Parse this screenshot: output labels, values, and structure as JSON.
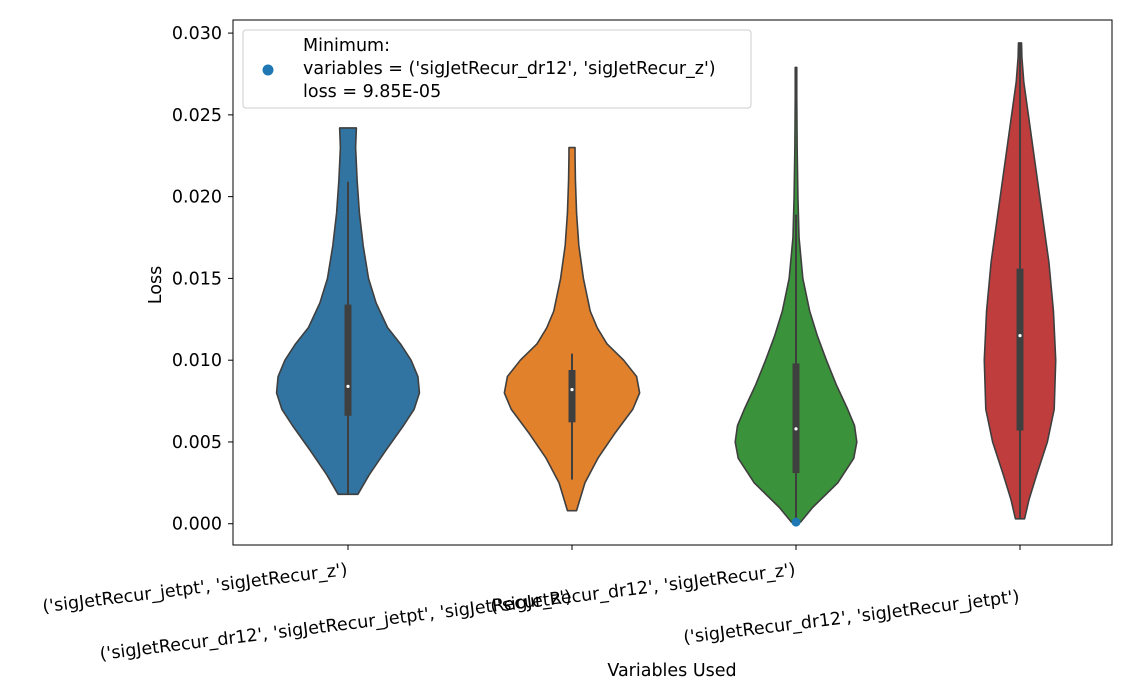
{
  "chart_data": {
    "type": "violin",
    "xlabel": "Variables Used",
    "ylabel": "Loss",
    "ylim": [
      -0.0013,
      0.0308
    ],
    "yticks": [
      0.0,
      0.005,
      0.01,
      0.015,
      0.02,
      0.025,
      0.03
    ],
    "ytick_labels": [
      "0.000",
      "0.005",
      "0.010",
      "0.015",
      "0.020",
      "0.025",
      "0.030"
    ],
    "grid": false,
    "legend_position": "top-left",
    "legend": {
      "title": "Minimum:",
      "line1": "variables = ('sigJetRecur_dr12', 'sigJetRecur_z')",
      "line2": "loss = 9.85E-05",
      "marker_color": "#1f77b4"
    },
    "minimum_point": {
      "category_index": 2,
      "value": 9.85e-05
    },
    "categories": [
      "('sigJetRecur_jetpt', 'sigJetRecur_z')",
      "('sigJetRecur_dr12', 'sigJetRecur_jetpt', 'sigJetRecur_z')",
      "('sigJetRecur_dr12', 'sigJetRecur_z')",
      "('sigJetRecur_dr12', 'sigJetRecur_jetpt')"
    ],
    "violins": [
      {
        "color": "#3274a1",
        "min": 0.0018,
        "max": 0.0242,
        "q1": 0.0066,
        "median": 0.0084,
        "q3": 0.0134,
        "whisker_low": 0.0018,
        "whisker_high": 0.0209,
        "profile": [
          [
            0.0018,
            0.13
          ],
          [
            0.003,
            0.28
          ],
          [
            0.0045,
            0.5
          ],
          [
            0.006,
            0.73
          ],
          [
            0.007,
            0.87
          ],
          [
            0.008,
            0.94
          ],
          [
            0.009,
            0.92
          ],
          [
            0.01,
            0.83
          ],
          [
            0.011,
            0.69
          ],
          [
            0.012,
            0.52
          ],
          [
            0.0135,
            0.37
          ],
          [
            0.015,
            0.27
          ],
          [
            0.017,
            0.2
          ],
          [
            0.019,
            0.15
          ],
          [
            0.021,
            0.12
          ],
          [
            0.023,
            0.1
          ],
          [
            0.0242,
            0.11
          ]
        ]
      },
      {
        "color": "#e1812c",
        "min": 0.0008,
        "max": 0.023,
        "q1": 0.0062,
        "median": 0.0082,
        "q3": 0.0094,
        "whisker_low": 0.0027,
        "whisker_high": 0.0104,
        "profile": [
          [
            0.0008,
            0.06
          ],
          [
            0.0025,
            0.17
          ],
          [
            0.004,
            0.34
          ],
          [
            0.0055,
            0.56
          ],
          [
            0.007,
            0.8
          ],
          [
            0.008,
            0.89
          ],
          [
            0.009,
            0.85
          ],
          [
            0.01,
            0.68
          ],
          [
            0.011,
            0.46
          ],
          [
            0.012,
            0.33
          ],
          [
            0.013,
            0.24
          ],
          [
            0.015,
            0.15
          ],
          [
            0.017,
            0.09
          ],
          [
            0.019,
            0.06
          ],
          [
            0.021,
            0.045
          ],
          [
            0.0225,
            0.04
          ],
          [
            0.023,
            0.04
          ]
        ]
      },
      {
        "color": "#3a923a",
        "min": 0.0001,
        "max": 0.0279,
        "q1": 0.0031,
        "median": 0.0058,
        "q3": 0.0098,
        "whisker_low": 0.0001,
        "whisker_high": 0.0189,
        "profile": [
          [
            0.0001,
            0.06
          ],
          [
            0.001,
            0.22
          ],
          [
            0.0025,
            0.55
          ],
          [
            0.004,
            0.76
          ],
          [
            0.005,
            0.8
          ],
          [
            0.006,
            0.77
          ],
          [
            0.007,
            0.68
          ],
          [
            0.0085,
            0.53
          ],
          [
            0.01,
            0.4
          ],
          [
            0.0115,
            0.28
          ],
          [
            0.013,
            0.18
          ],
          [
            0.015,
            0.09
          ],
          [
            0.0175,
            0.04
          ],
          [
            0.02,
            0.025
          ],
          [
            0.023,
            0.015
          ],
          [
            0.026,
            0.01
          ],
          [
            0.0279,
            0.01
          ]
        ]
      },
      {
        "color": "#c03d3e",
        "min": 0.0003,
        "max": 0.0294,
        "q1": 0.0057,
        "median": 0.0115,
        "q3": 0.0156,
        "whisker_low": 0.0003,
        "whisker_high": 0.0294,
        "profile": [
          [
            0.0003,
            0.06
          ],
          [
            0.0015,
            0.12
          ],
          [
            0.003,
            0.22
          ],
          [
            0.005,
            0.36
          ],
          [
            0.007,
            0.45
          ],
          [
            0.01,
            0.47
          ],
          [
            0.013,
            0.44
          ],
          [
            0.016,
            0.38
          ],
          [
            0.019,
            0.29
          ],
          [
            0.022,
            0.2
          ],
          [
            0.025,
            0.11
          ],
          [
            0.027,
            0.05
          ],
          [
            0.0285,
            0.025
          ],
          [
            0.0294,
            0.02
          ]
        ]
      }
    ]
  }
}
